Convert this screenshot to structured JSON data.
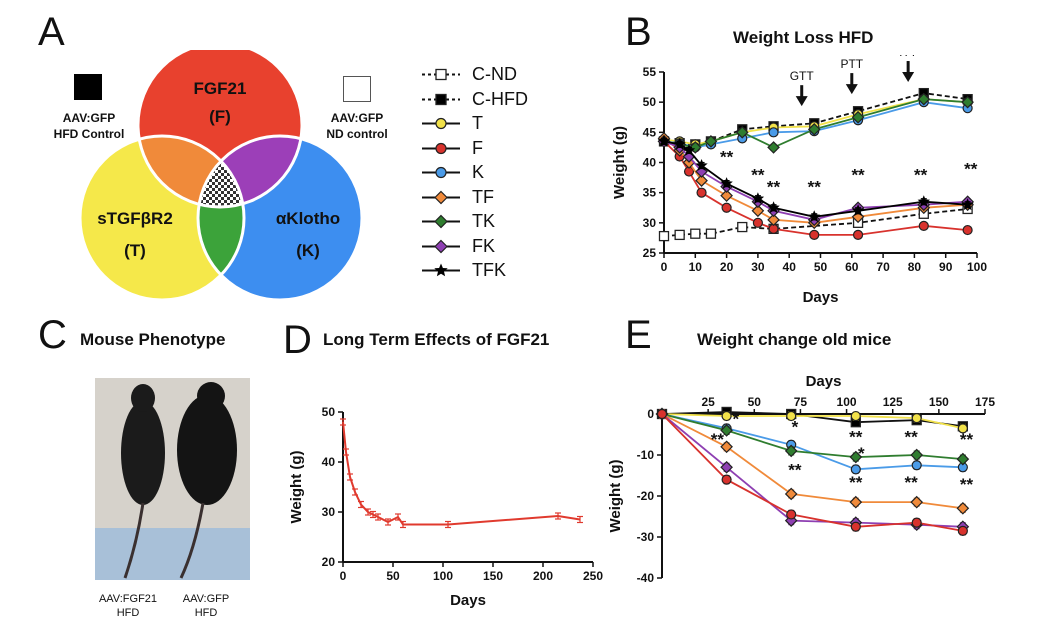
{
  "panels": {
    "A": {
      "letter": "A"
    },
    "B": {
      "letter": "B",
      "title": "Weight Loss HFD"
    },
    "C": {
      "letter": "C",
      "title": "Mouse Phenotype"
    },
    "D": {
      "letter": "D",
      "title": "Long Term Effects of FGF21"
    },
    "E": {
      "letter": "E",
      "title": "Weight change old mice"
    }
  },
  "venn": {
    "top": {
      "name": "FGF21",
      "abbr": "(F)",
      "color": "#e8412e"
    },
    "left": {
      "name": "sTGFβR2",
      "abbr": "(T)",
      "color": "#f5e84a"
    },
    "right": {
      "name": "αKlotho",
      "abbr": "(K)",
      "color": "#3d8ef0"
    },
    "overlap_FT": "#f08a3a",
    "overlap_FK": "#9c3fb8",
    "overlap_TK": "#3ca33a",
    "hfd_control": {
      "line1": "AAV:GFP",
      "line2": "HFD Control"
    },
    "nd_control": {
      "line1": "AAV:GFP",
      "line2": "ND control"
    }
  },
  "legend": [
    {
      "label": "C-ND",
      "color": "#ffffff",
      "marker": "square",
      "dash": true
    },
    {
      "label": "C-HFD",
      "color": "#000000",
      "marker": "square",
      "dash": true
    },
    {
      "label": "T",
      "color": "#f2e24a",
      "marker": "circle",
      "dash": false
    },
    {
      "label": "F",
      "color": "#d8322d",
      "marker": "circle",
      "dash": false
    },
    {
      "label": "K",
      "color": "#4a9be8",
      "marker": "circle",
      "dash": false
    },
    {
      "label": "TF",
      "color": "#f08a3a",
      "marker": "diamond",
      "dash": false
    },
    {
      "label": "TK",
      "color": "#2f7d2f",
      "marker": "diamond",
      "dash": false
    },
    {
      "label": "FK",
      "color": "#8e3fb2",
      "marker": "diamond",
      "dash": false
    },
    {
      "label": "TFK",
      "color": "#000000",
      "marker": "star",
      "dash": false
    }
  ],
  "mouse": {
    "left_caption": [
      "AAV:FGF21",
      "HFD"
    ],
    "right_caption": [
      "AAV:GFP",
      "HFD"
    ]
  },
  "chart_data": [
    {
      "id": "B",
      "type": "line",
      "title": "Weight Loss HFD",
      "xlabel": "Days",
      "ylabel": "Weight (g)",
      "xlim": [
        0,
        100
      ],
      "ylim": [
        25,
        55
      ],
      "xticks": [
        0,
        10,
        20,
        30,
        40,
        50,
        60,
        70,
        80,
        90,
        100
      ],
      "yticks": [
        25,
        30,
        35,
        40,
        45,
        50,
        55
      ],
      "annotations": [
        {
          "text": "GTT",
          "x": 44,
          "y": 50
        },
        {
          "text": "PTT",
          "x": 60,
          "y": 52
        },
        {
          "text": "ITT",
          "x": 78,
          "y": 54
        }
      ],
      "stars": [
        {
          "text": "**",
          "x": 20,
          "y": 40
        },
        {
          "text": "**",
          "x": 30,
          "y": 37
        },
        {
          "text": "**",
          "x": 35,
          "y": 35
        },
        {
          "text": "**",
          "x": 48,
          "y": 35
        },
        {
          "text": "**",
          "x": 62,
          "y": 37
        },
        {
          "text": "**",
          "x": 82,
          "y": 37
        },
        {
          "text": "**",
          "x": 98,
          "y": 38
        }
      ],
      "series": [
        {
          "name": "C-ND",
          "color": "#ffffff",
          "marker": "square",
          "dash": true,
          "x": [
            0,
            5,
            10,
            15,
            25,
            35,
            62,
            83,
            97
          ],
          "y": [
            27.8,
            28.0,
            28.2,
            28.2,
            29.3,
            29.0,
            30.0,
            31.5,
            32.3
          ]
        },
        {
          "name": "C-HFD",
          "color": "#000000",
          "marker": "square",
          "dash": true,
          "x": [
            0,
            5,
            10,
            15,
            25,
            35,
            48,
            62,
            83,
            97
          ],
          "y": [
            43.5,
            43.2,
            43.0,
            43.5,
            45.5,
            46.0,
            46.5,
            48.5,
            51.5,
            50.5
          ]
        },
        {
          "name": "T",
          "color": "#f2e24a",
          "marker": "circle",
          "dash": false,
          "x": [
            0,
            5,
            10,
            15,
            25,
            35,
            48,
            62,
            83,
            97
          ],
          "y": [
            43.8,
            43.5,
            43.0,
            43.5,
            45.0,
            45.8,
            46.0,
            48.0,
            50.5,
            50.0
          ]
        },
        {
          "name": "F",
          "color": "#d8322d",
          "marker": "circle",
          "dash": false,
          "x": [
            0,
            5,
            8,
            12,
            20,
            30,
            35,
            48,
            62,
            83,
            97
          ],
          "y": [
            43.5,
            41.0,
            38.5,
            35.0,
            32.5,
            30.0,
            29.0,
            28.0,
            28.0,
            29.5,
            28.8
          ]
        },
        {
          "name": "K",
          "color": "#4a9be8",
          "marker": "circle",
          "dash": false,
          "x": [
            0,
            5,
            10,
            15,
            25,
            35,
            48,
            62,
            83,
            97
          ],
          "y": [
            43.5,
            43.2,
            42.5,
            43.0,
            44.0,
            45.0,
            45.2,
            47.0,
            50.0,
            49.0
          ]
        },
        {
          "name": "TF",
          "color": "#f08a3a",
          "marker": "diamond",
          "dash": false,
          "x": [
            0,
            5,
            8,
            12,
            20,
            30,
            35,
            48,
            62,
            83,
            97
          ],
          "y": [
            44.0,
            42.0,
            40.0,
            37.0,
            34.5,
            32.0,
            30.5,
            30.0,
            31.0,
            32.5,
            33.0
          ]
        },
        {
          "name": "TK",
          "color": "#2f7d2f",
          "marker": "diamond",
          "dash": false,
          "x": [
            0,
            5,
            10,
            15,
            25,
            35,
            48,
            62,
            83,
            97
          ],
          "y": [
            43.5,
            43.0,
            42.5,
            43.5,
            45.0,
            42.5,
            45.5,
            47.5,
            50.5,
            50.0
          ]
        },
        {
          "name": "FK",
          "color": "#8e3fb2",
          "marker": "diamond",
          "dash": false,
          "x": [
            0,
            5,
            8,
            12,
            20,
            30,
            35,
            48,
            62,
            83,
            97
          ],
          "y": [
            43.5,
            42.5,
            41.0,
            38.5,
            36.0,
            33.5,
            32.0,
            30.5,
            32.5,
            33.0,
            33.5
          ]
        },
        {
          "name": "TFK",
          "color": "#000000",
          "marker": "star",
          "dash": false,
          "x": [
            0,
            5,
            8,
            12,
            20,
            30,
            35,
            48,
            62,
            83,
            97
          ],
          "y": [
            43.5,
            43.0,
            42.0,
            39.5,
            36.5,
            34.0,
            32.5,
            31.0,
            32.0,
            33.5,
            33.0
          ]
        }
      ]
    },
    {
      "id": "D",
      "type": "line",
      "title": "Long Term Effects of FGF21",
      "xlabel": "Days",
      "ylabel": "Weight (g)",
      "xlim": [
        0,
        250
      ],
      "ylim": [
        20,
        50
      ],
      "xticks": [
        0,
        50,
        100,
        150,
        200,
        250
      ],
      "yticks": [
        20,
        30,
        40,
        50
      ],
      "series": [
        {
          "name": "FGF21",
          "color": "#e03a2e",
          "x": [
            0,
            3,
            7,
            12,
            18,
            25,
            30,
            35,
            45,
            55,
            60,
            105,
            215,
            237
          ],
          "y": [
            48.0,
            42.0,
            37.0,
            34.0,
            31.5,
            30.0,
            29.5,
            29.0,
            28.0,
            29.0,
            27.5,
            27.5,
            29.2,
            28.5
          ]
        }
      ]
    },
    {
      "id": "E",
      "type": "line",
      "title": "Weight change old mice",
      "xlabel": "Days",
      "ylabel": "Weight (g)",
      "xlim": [
        0,
        175
      ],
      "ylim": [
        -40,
        0
      ],
      "xticks": [
        25,
        50,
        75,
        100,
        125,
        150,
        175
      ],
      "yticks": [
        0,
        -10,
        -20,
        -30,
        -40
      ],
      "stars": [
        {
          "text": "*",
          "x": 40,
          "y": -2.5
        },
        {
          "text": "*",
          "x": 72,
          "y": -4.5
        },
        {
          "text": "*",
          "x": 108,
          "y": -11
        },
        {
          "text": "**",
          "x": 30,
          "y": -7.5
        },
        {
          "text": "**",
          "x": 105,
          "y": -7
        },
        {
          "text": "**",
          "x": 135,
          "y": -7
        },
        {
          "text": "**",
          "x": 165,
          "y": -7.5
        },
        {
          "text": "**",
          "x": 72,
          "y": -15
        },
        {
          "text": "**",
          "x": 105,
          "y": -18
        },
        {
          "text": "**",
          "x": 135,
          "y": -18
        },
        {
          "text": "**",
          "x": 165,
          "y": -18.5
        }
      ],
      "series": [
        {
          "name": "C-HFD",
          "color": "#000000",
          "marker": "square",
          "x": [
            0,
            35,
            70,
            105,
            138,
            163
          ],
          "y": [
            0,
            0.5,
            0,
            -2.0,
            -1.5,
            -3.0
          ]
        },
        {
          "name": "T",
          "color": "#f2e24a",
          "marker": "circle",
          "x": [
            0,
            35,
            70,
            105,
            138,
            163
          ],
          "y": [
            0,
            -0.5,
            -0.5,
            -0.5,
            -1.0,
            -3.5
          ]
        },
        {
          "name": "K",
          "color": "#4a9be8",
          "marker": "circle",
          "x": [
            0,
            35,
            70,
            105,
            138,
            163
          ],
          "y": [
            0,
            -3.5,
            -7.5,
            -13.5,
            -12.5,
            -13.0
          ]
        },
        {
          "name": "TK",
          "color": "#2f7d2f",
          "marker": "diamond",
          "x": [
            0,
            35,
            70,
            105,
            138,
            163
          ],
          "y": [
            0,
            -4.0,
            -9.0,
            -10.5,
            -10.0,
            -11.0
          ]
        },
        {
          "name": "TF",
          "color": "#f08a3a",
          "marker": "diamond",
          "x": [
            0,
            35,
            70,
            105,
            138,
            163
          ],
          "y": [
            0,
            -8.0,
            -19.5,
            -21.5,
            -21.5,
            -23.0
          ]
        },
        {
          "name": "FK",
          "color": "#8e3fb2",
          "marker": "diamond",
          "x": [
            0,
            35,
            70,
            105,
            138,
            163
          ],
          "y": [
            0,
            -13.0,
            -26.0,
            -26.5,
            -27.0,
            -27.5
          ]
        },
        {
          "name": "F",
          "color": "#d8322d",
          "marker": "circle",
          "x": [
            0,
            35,
            70,
            105,
            138,
            163
          ],
          "y": [
            0,
            -16.0,
            -24.5,
            -27.5,
            -26.5,
            -28.5
          ]
        }
      ]
    }
  ]
}
